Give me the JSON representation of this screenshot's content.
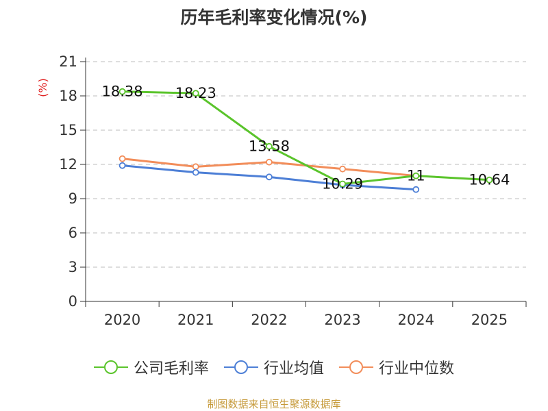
{
  "chart_data": {
    "type": "line",
    "title": "历年毛利率变化情况(%)",
    "ylabel": "(%)",
    "xlabel": "",
    "categories": [
      "2020",
      "2021",
      "2022",
      "2023",
      "2024",
      "2025"
    ],
    "ylim": [
      0,
      21
    ],
    "yticks": [
      0,
      3,
      6,
      9,
      12,
      15,
      18,
      21
    ],
    "grid": true,
    "legend_position": "bottom",
    "series": [
      {
        "name": "公司毛利率",
        "color": "#5ac42b",
        "values": [
          18.38,
          18.23,
          13.58,
          10.29,
          11,
          10.64
        ],
        "labels": [
          "18.38",
          "18.23",
          "13.58",
          "10.29",
          "11",
          "10.64"
        ]
      },
      {
        "name": "行业均值",
        "color": "#4d7fd6",
        "values": [
          11.9,
          11.3,
          10.9,
          10.2,
          9.8,
          null
        ]
      },
      {
        "name": "行业中位数",
        "color": "#f28d5a",
        "values": [
          12.5,
          11.8,
          12.2,
          11.6,
          11.0,
          null
        ]
      }
    ],
    "source": "制图数据来自恒生聚源数据库"
  }
}
